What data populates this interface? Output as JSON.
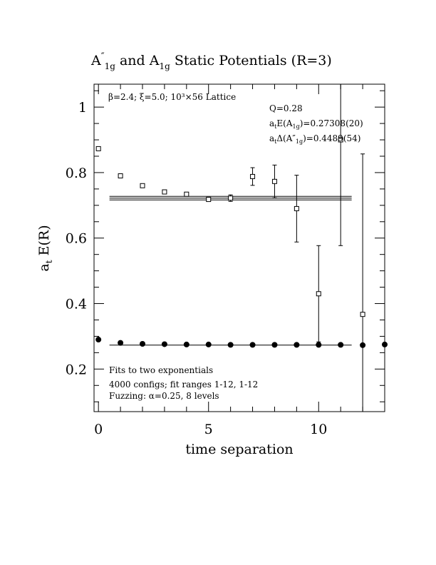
{
  "chart_data": {
    "type": "scatter",
    "title_parts": {
      "a": "A",
      "prime": "″",
      "sub1": "1g",
      "mid": " and A",
      "sub2": "1g",
      "rest": " Static Potentials (R=3)"
    },
    "xlabel": "time separation",
    "ylabel_parts": {
      "a": "a",
      "sub": "t",
      "rest": " E(R)"
    },
    "xlim": [
      -0.2,
      13
    ],
    "ylim": [
      0.07,
      1.07
    ],
    "x_ticks": [
      0,
      5,
      10
    ],
    "x_tick_labels": [
      "0",
      "5",
      "10"
    ],
    "y_ticks": [
      0.2,
      0.4,
      0.6,
      0.8,
      1.0
    ],
    "y_tick_labels": [
      "0.2",
      "0.4",
      "0.6",
      "0.8",
      "1"
    ],
    "annotation_lattice": "β=2.4; ξ=5.0; 10³×56 Lattice",
    "annotation_q": "Q=0.28",
    "annotation_e1g": {
      "pre": "a",
      "sub1": "t",
      "mid": "E(A",
      "sub2": "1g",
      "post": ")=0.27308(20)"
    },
    "annotation_delta": {
      "pre": "a",
      "sub1": "t",
      "mid": "Δ(A″",
      "sub2": "1g",
      "post": ")=0.4489(54)"
    },
    "note_lines": [
      "Fits to two exponentials",
      "4000 configs; fit ranges 1-12, 1-12",
      "Fuzzing: α=0.25, 8 levels"
    ],
    "series": [
      {
        "name": "A″_1g",
        "marker": "open-square",
        "points": [
          {
            "x": 0,
            "y": 0.873,
            "err": 0.004
          },
          {
            "x": 1,
            "y": 0.79,
            "err": 0.004
          },
          {
            "x": 2,
            "y": 0.76,
            "err": 0.004
          },
          {
            "x": 3,
            "y": 0.741,
            "err": 0.005
          },
          {
            "x": 4,
            "y": 0.734,
            "err": 0.005
          },
          {
            "x": 5,
            "y": 0.718,
            "err": 0.006
          },
          {
            "x": 6,
            "y": 0.722,
            "err": 0.01
          },
          {
            "x": 7,
            "y": 0.788,
            "err": 0.027
          },
          {
            "x": 8,
            "y": 0.773,
            "err": 0.05
          },
          {
            "x": 9,
            "y": 0.69,
            "err": 0.102
          },
          {
            "x": 10,
            "y": 0.43,
            "err": 0.147
          },
          {
            "x": 11,
            "y": 0.9,
            "err": 0.323
          },
          {
            "x": 12,
            "y": 0.367,
            "err": 0.49
          }
        ]
      },
      {
        "name": "A_1g",
        "marker": "filled-circle",
        "points": [
          {
            "x": 0,
            "y": 0.29
          },
          {
            "x": 1,
            "y": 0.28
          },
          {
            "x": 2,
            "y": 0.277
          },
          {
            "x": 3,
            "y": 0.276
          },
          {
            "x": 4,
            "y": 0.275
          },
          {
            "x": 5,
            "y": 0.275
          },
          {
            "x": 6,
            "y": 0.274
          },
          {
            "x": 7,
            "y": 0.274
          },
          {
            "x": 8,
            "y": 0.274
          },
          {
            "x": 9,
            "y": 0.274
          },
          {
            "x": 10,
            "y": 0.274
          },
          {
            "x": 11,
            "y": 0.274
          },
          {
            "x": 12,
            "y": 0.273
          },
          {
            "x": 13,
            "y": 0.275
          }
        ]
      }
    ],
    "fits": [
      {
        "name": "A″_1g band",
        "x_range": [
          0.5,
          11.5
        ],
        "y_center": 0.722,
        "half_width": 0.0054
      },
      {
        "name": "A_1g fit",
        "x_range": [
          0.5,
          11.5
        ],
        "y_center": 0.27308,
        "half_width": 0.0002
      }
    ]
  }
}
